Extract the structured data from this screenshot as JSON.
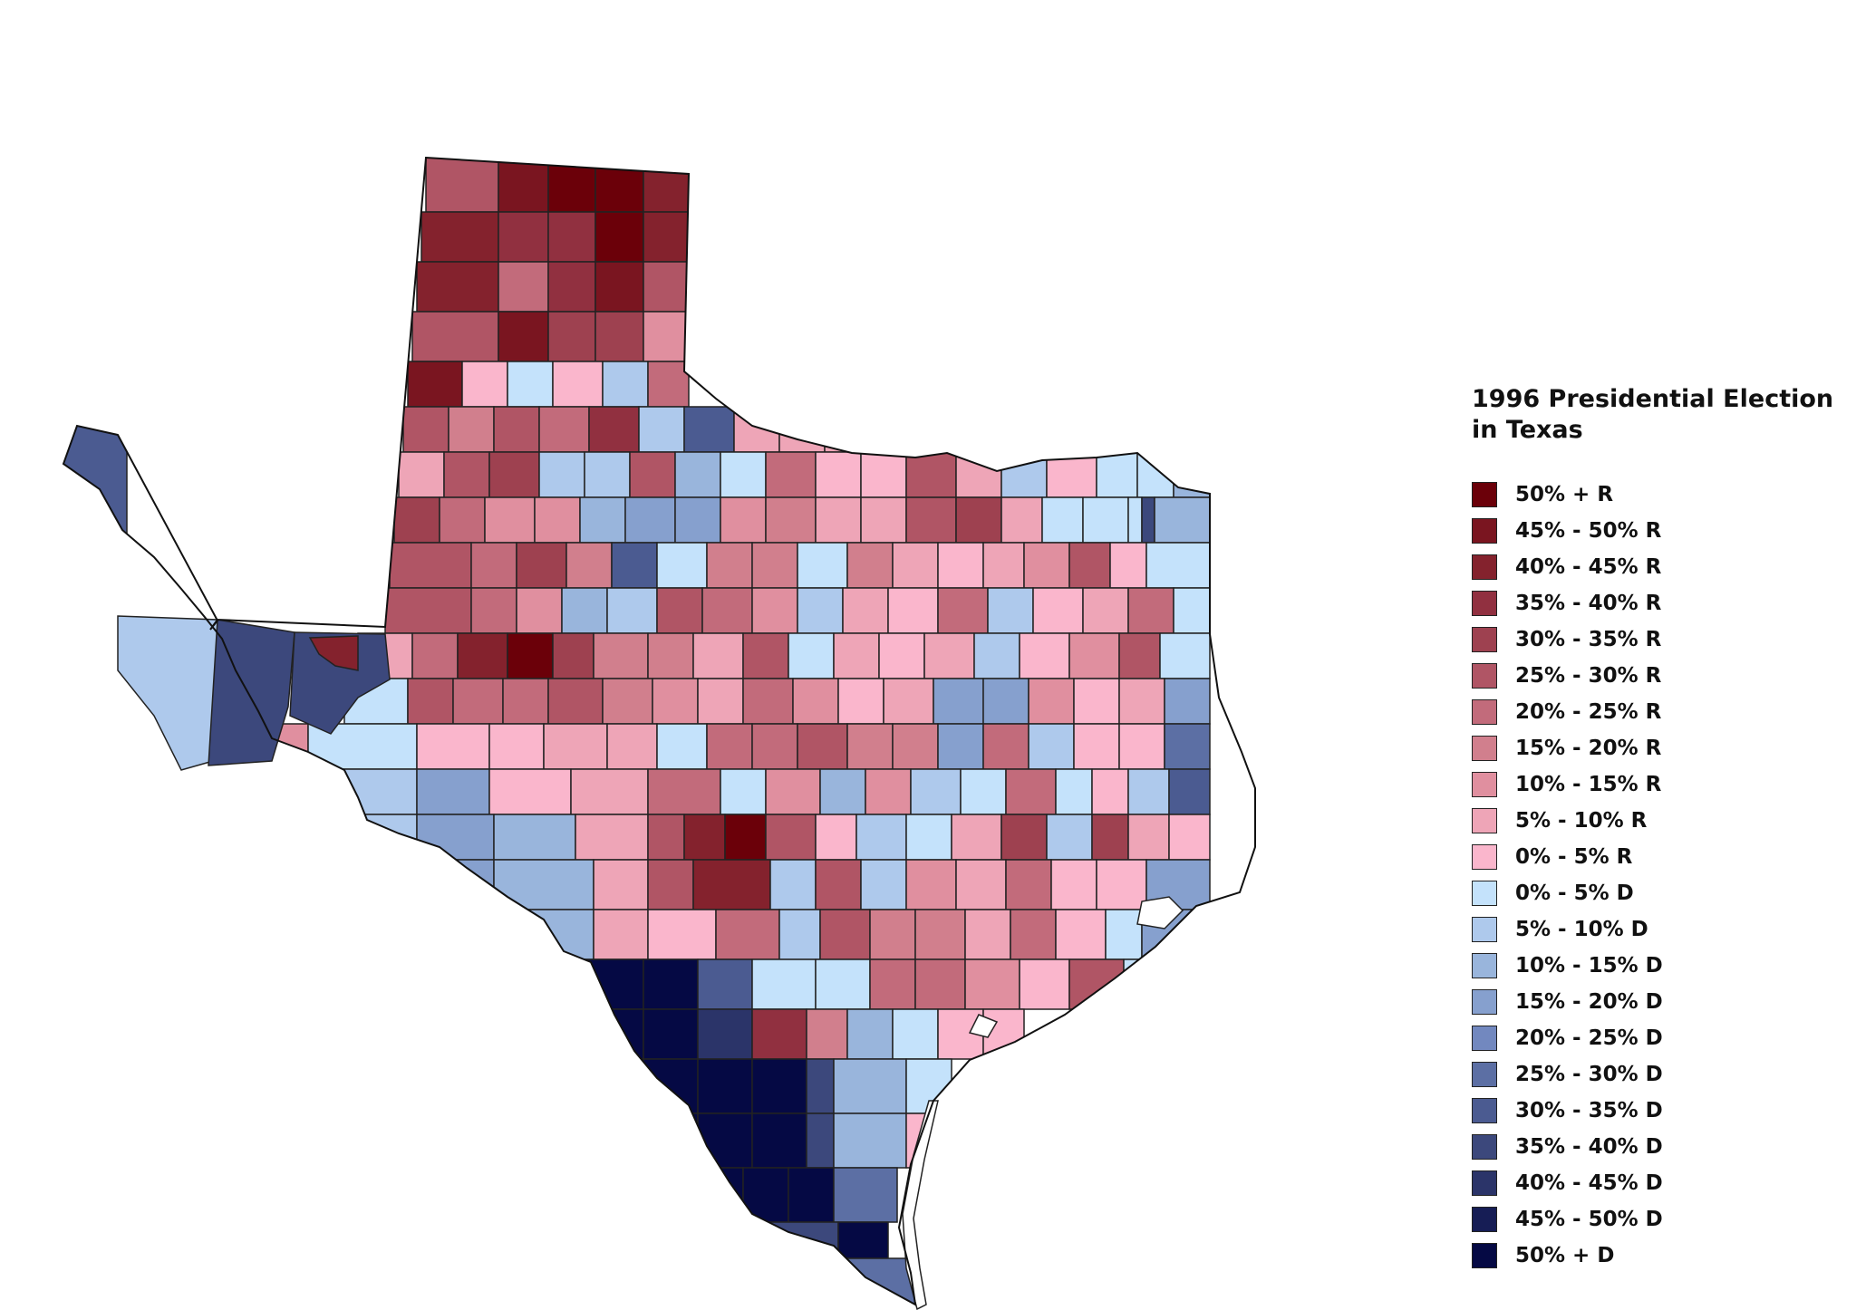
{
  "legend": {
    "title_line1": "1996 Presidential Election",
    "title_line2": "in Texas",
    "items": [
      {
        "label": "50% + R",
        "color": "#6b0009"
      },
      {
        "label": "45% - 50% R",
        "color": "#7a1520"
      },
      {
        "label": "40% - 45% R",
        "color": "#84222d"
      },
      {
        "label": "35% - 40% R",
        "color": "#913040"
      },
      {
        "label": "30% - 35% R",
        "color": "#9e4150"
      },
      {
        "label": "25% - 30% R",
        "color": "#b05565"
      },
      {
        "label": "20% - 25% R",
        "color": "#c26b7b"
      },
      {
        "label": "15% - 20% R",
        "color": "#d17f8d"
      },
      {
        "label": "10% - 15% R",
        "color": "#e08f9f"
      },
      {
        "label": "5% - 10% R",
        "color": "#eea5b7"
      },
      {
        "label": "0% - 5% R",
        "color": "#fab6cc"
      },
      {
        "label": "0% - 5% D",
        "color": "#c4e2fb"
      },
      {
        "label": "5% - 10% D",
        "color": "#aec9ec"
      },
      {
        "label": "10% - 15% D",
        "color": "#99b5dc"
      },
      {
        "label": "15% - 20% D",
        "color": "#86a0ce"
      },
      {
        "label": "20% - 25% D",
        "color": "#7288bf"
      },
      {
        "label": "25% - 30% D",
        "color": "#5c6fa4"
      },
      {
        "label": "30% - 35% D",
        "color": "#4b5b91"
      },
      {
        "label": "35% - 40% D",
        "color": "#3c487c"
      },
      {
        "label": "40% - 45% D",
        "color": "#2b3469"
      },
      {
        "label": "45% - 50% D",
        "color": "#161d55"
      },
      {
        "label": "50% + D",
        "color": "#050944"
      }
    ]
  }
}
